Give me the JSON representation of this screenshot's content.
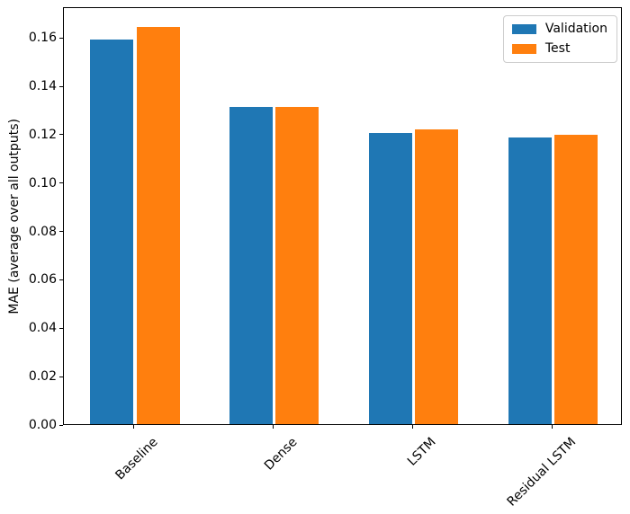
{
  "chart_data": {
    "type": "bar",
    "title": "",
    "xlabel": "",
    "ylabel": "MAE (average over all outputs)",
    "categories": [
      "Baseline",
      "Dense",
      "LSTM",
      "Residual LSTM"
    ],
    "series": [
      {
        "name": "Validation",
        "color": "#1f77b4",
        "values": [
          0.159,
          0.131,
          0.1205,
          0.1185
        ]
      },
      {
        "name": "Test",
        "color": "#ff7f0e",
        "values": [
          0.164,
          0.131,
          0.122,
          0.1195
        ]
      }
    ],
    "ylim": [
      0,
      0.1727
    ],
    "xlim": [
      -0.51,
      3.5
    ],
    "yticks": [
      0.0,
      0.02,
      0.04,
      0.06,
      0.08,
      0.1,
      0.12,
      0.14,
      0.16
    ],
    "ytick_format": "2dp",
    "xtick_rotation_deg": 45,
    "grid": false,
    "legend_position": "upper right",
    "bar_layout": {
      "bar_width_units": 0.31,
      "group_offset_units": 0.1655
    }
  }
}
